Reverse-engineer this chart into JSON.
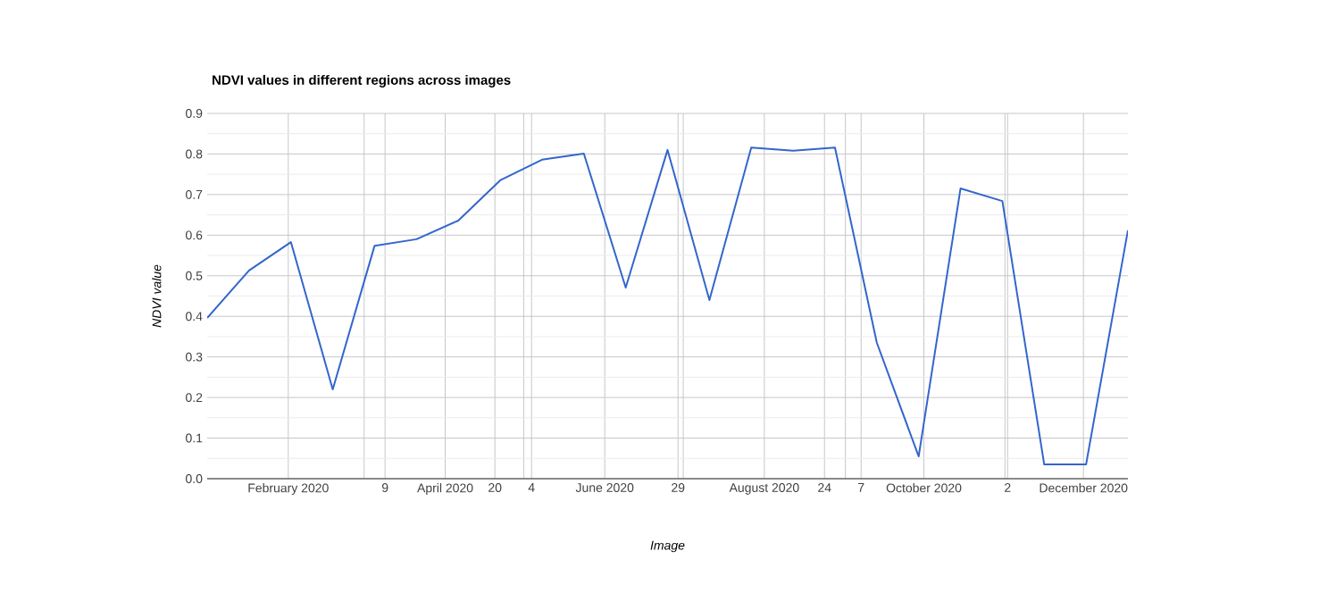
{
  "chart_data": {
    "type": "line",
    "title": "NDVI values in different regions across images",
    "xlabel": "Image",
    "ylabel": "NDVI value",
    "x": [
      "2020-01-01",
      "2020-01-17",
      "2020-02-02",
      "2020-02-18",
      "2020-03-05",
      "2020-03-21",
      "2020-04-06",
      "2020-04-22",
      "2020-05-08",
      "2020-05-24",
      "2020-06-09",
      "2020-06-25",
      "2020-07-11",
      "2020-07-27",
      "2020-08-12",
      "2020-08-28",
      "2020-09-13",
      "2020-09-29",
      "2020-10-15",
      "2020-10-31",
      "2020-11-16",
      "2020-12-02",
      "2020-12-18"
    ],
    "values": [
      0.396,
      0.513,
      0.583,
      0.22,
      0.574,
      0.59,
      0.636,
      0.735,
      0.786,
      0.801,
      0.471,
      0.81,
      0.44,
      0.816,
      0.808,
      0.816,
      0.335,
      0.055,
      0.715,
      0.684,
      0.035,
      0.035,
      0.612
    ],
    "color": "#3366cc",
    "line_style": "solid",
    "marker": "none",
    "xlim": [
      "2020-01-01",
      "2020-12-18"
    ],
    "xticks": [
      {
        "value": "2020-02-01",
        "label": "February 2020"
      },
      {
        "value": "2020-03-01",
        "label": null
      },
      {
        "value": "2020-03-09",
        "label": "9"
      },
      {
        "value": "2020-04-01",
        "label": "April 2020"
      },
      {
        "value": "2020-04-20",
        "label": "20"
      },
      {
        "value": "2020-05-01",
        "label": null
      },
      {
        "value": "2020-05-04",
        "label": "4"
      },
      {
        "value": "2020-06-01",
        "label": "June 2020"
      },
      {
        "value": "2020-06-29",
        "label": "29"
      },
      {
        "value": "2020-07-01",
        "label": null
      },
      {
        "value": "2020-08-01",
        "label": "August 2020"
      },
      {
        "value": "2020-08-24",
        "label": "24"
      },
      {
        "value": "2020-09-01",
        "label": null
      },
      {
        "value": "2020-09-07",
        "label": "7"
      },
      {
        "value": "2020-10-01",
        "label": "October 2020"
      },
      {
        "value": "2020-11-01",
        "label": null
      },
      {
        "value": "2020-11-02",
        "label": "2"
      },
      {
        "value": "2020-12-01",
        "label": "December 2020"
      }
    ],
    "ylim": [
      0,
      0.9
    ],
    "yticks": [
      {
        "value": 0,
        "label": "0.0"
      },
      0.1,
      0.2,
      0.3,
      0.4,
      0.5,
      0.6,
      0.7,
      0.8,
      0.9
    ],
    "grid": true
  }
}
